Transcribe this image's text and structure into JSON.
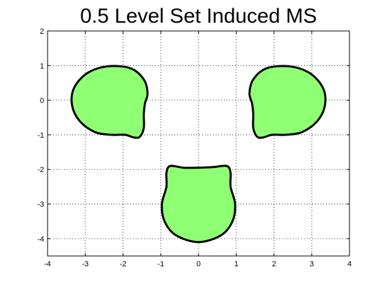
{
  "chart_data": {
    "type": "area",
    "title": "0.5 Level Set Induced MS",
    "xlabel": "",
    "ylabel": "",
    "xlim": [
      -4,
      4
    ],
    "ylim": [
      -4.5,
      2
    ],
    "xticks": [
      -4,
      -3,
      -2,
      -1,
      0,
      1,
      2,
      3,
      4
    ],
    "yticks": [
      -4,
      -3,
      -2,
      -1,
      0,
      1,
      2
    ],
    "grid": true,
    "fill_color": "#8fff73",
    "edge_color": "#000000",
    "regions": [
      {
        "points": [
          [
            -1.55,
            -1.05
          ],
          [
            -1.45,
            -0.8
          ],
          [
            -1.45,
            -0.4
          ],
          [
            -1.42,
            -0.1
          ],
          [
            -1.35,
            0.2
          ],
          [
            -1.45,
            0.6
          ],
          [
            -1.8,
            0.92
          ],
          [
            -2.4,
            0.98
          ],
          [
            -2.95,
            0.78
          ],
          [
            -3.3,
            0.35
          ],
          [
            -3.35,
            -0.15
          ],
          [
            -3.15,
            -0.6
          ],
          [
            -2.75,
            -0.92
          ],
          [
            -2.3,
            -1.0
          ],
          [
            -1.95,
            -1.0
          ],
          [
            -1.7,
            -1.08
          ]
        ]
      },
      {
        "points": [
          [
            1.55,
            -1.05
          ],
          [
            1.45,
            -0.8
          ],
          [
            1.45,
            -0.4
          ],
          [
            1.42,
            -0.1
          ],
          [
            1.35,
            0.2
          ],
          [
            1.45,
            0.6
          ],
          [
            1.8,
            0.92
          ],
          [
            2.4,
            0.98
          ],
          [
            2.95,
            0.78
          ],
          [
            3.3,
            0.35
          ],
          [
            3.35,
            -0.15
          ],
          [
            3.15,
            -0.6
          ],
          [
            2.75,
            -0.92
          ],
          [
            2.3,
            -1.0
          ],
          [
            1.95,
            -1.0
          ],
          [
            1.7,
            -1.08
          ]
        ]
      },
      {
        "points": [
          [
            -0.75,
            -1.9
          ],
          [
            -0.4,
            -1.95
          ],
          [
            0,
            -1.95
          ],
          [
            0.4,
            -1.93
          ],
          [
            0.75,
            -1.9
          ],
          [
            0.85,
            -2.1
          ],
          [
            0.85,
            -2.5
          ],
          [
            0.97,
            -3.0
          ],
          [
            0.9,
            -3.5
          ],
          [
            0.6,
            -3.9
          ],
          [
            0,
            -4.1
          ],
          [
            -0.6,
            -3.9
          ],
          [
            -0.9,
            -3.5
          ],
          [
            -0.97,
            -3.0
          ],
          [
            -0.85,
            -2.5
          ],
          [
            -0.85,
            -2.1
          ]
        ]
      }
    ]
  }
}
